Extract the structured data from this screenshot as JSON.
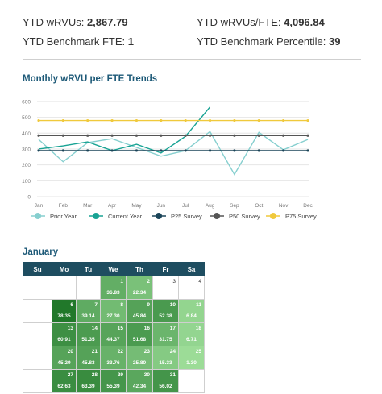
{
  "kpis": {
    "ytd_wrvus_label": "YTD wRVUs:",
    "ytd_wrvus_value": "2,867.79",
    "ytd_wrvus_fte_label": "YTD wRVUs/FTE:",
    "ytd_wrvus_fte_value": "4,096.84",
    "ytd_benchmark_fte_label": "YTD Benchmark FTE:",
    "ytd_benchmark_fte_value": "1",
    "ytd_benchmark_percentile_label": "YTD Benchmark Percentile:",
    "ytd_benchmark_percentile_value": "39"
  },
  "chart_data": {
    "type": "line",
    "title": "Monthly wRVU per FTE Trends",
    "categories": [
      "Jan",
      "Feb",
      "Mar",
      "Apr",
      "May",
      "Jun",
      "Jul",
      "Aug",
      "Sep",
      "Oct",
      "Nov",
      "Dec"
    ],
    "y_ticks": [
      "0",
      "100",
      "200",
      "300",
      "400",
      "500",
      "600"
    ],
    "ylim": [
      0,
      620
    ],
    "grid": true,
    "legend_position": "bottom",
    "series": [
      {
        "name": "Prior Year",
        "color": "#86cfcf",
        "values": [
          360,
          220,
          340,
          365,
          310,
          255,
          290,
          410,
          140,
          405,
          295,
          360
        ]
      },
      {
        "name": "Current Year",
        "color": "#18a394",
        "values": [
          300,
          320,
          345,
          290,
          330,
          275,
          380,
          565,
          null,
          null,
          null,
          null
        ]
      },
      {
        "name": "P25 Survey",
        "color": "#1b4559",
        "marker": "dot",
        "values": [
          290,
          290,
          290,
          290,
          290,
          290,
          290,
          290,
          290,
          290,
          290,
          290
        ]
      },
      {
        "name": "P50 Survey",
        "color": "#555555",
        "marker": "dot",
        "values": [
          385,
          385,
          385,
          385,
          385,
          385,
          385,
          385,
          385,
          385,
          385,
          385
        ]
      },
      {
        "name": "P75 Survey",
        "color": "#f0c93c",
        "marker": "dot",
        "values": [
          480,
          480,
          480,
          480,
          480,
          480,
          480,
          480,
          480,
          480,
          480,
          480
        ]
      }
    ]
  },
  "calendar": {
    "title": "January",
    "headers": [
      "Su",
      "Mo",
      "Tu",
      "We",
      "Th",
      "Fr",
      "Sa"
    ],
    "weeks": [
      {
        "label": "",
        "days": [
          null,
          null,
          null,
          {
            "d": "1",
            "v": "36.83"
          },
          {
            "d": "2",
            "v": "22.34"
          },
          {
            "d": "3",
            "v": ""
          },
          {
            "d": "4",
            "v": ""
          }
        ]
      },
      {
        "label": "5",
        "days": [
          null,
          {
            "d": "6",
            "v": "78.35"
          },
          {
            "d": "7",
            "v": "39.14"
          },
          {
            "d": "8",
            "v": "27.30"
          },
          {
            "d": "9",
            "v": "45.84"
          },
          {
            "d": "10",
            "v": "52.38"
          },
          {
            "d": "11",
            "v": "6.84"
          }
        ]
      },
      {
        "label": "12",
        "days": [
          null,
          {
            "d": "13",
            "v": "60.91"
          },
          {
            "d": "14",
            "v": "51.35"
          },
          {
            "d": "15",
            "v": "44.37"
          },
          {
            "d": "16",
            "v": "51.68"
          },
          {
            "d": "17",
            "v": "31.75"
          },
          {
            "d": "18",
            "v": "6.71"
          }
        ]
      },
      {
        "label": "19",
        "days": [
          null,
          {
            "d": "20",
            "v": "45.29"
          },
          {
            "d": "21",
            "v": "45.83"
          },
          {
            "d": "22",
            "v": "33.76"
          },
          {
            "d": "23",
            "v": "25.80"
          },
          {
            "d": "24",
            "v": "15.33"
          },
          {
            "d": "25",
            "v": "1.30"
          }
        ]
      },
      {
        "label": "26",
        "days": [
          null,
          {
            "d": "27",
            "v": "62.63"
          },
          {
            "d": "28",
            "v": "63.39"
          },
          {
            "d": "29",
            "v": "55.39"
          },
          {
            "d": "30",
            "v": "42.34"
          },
          {
            "d": "31",
            "v": "56.02"
          },
          null
        ]
      }
    ],
    "scale_max": 80
  }
}
